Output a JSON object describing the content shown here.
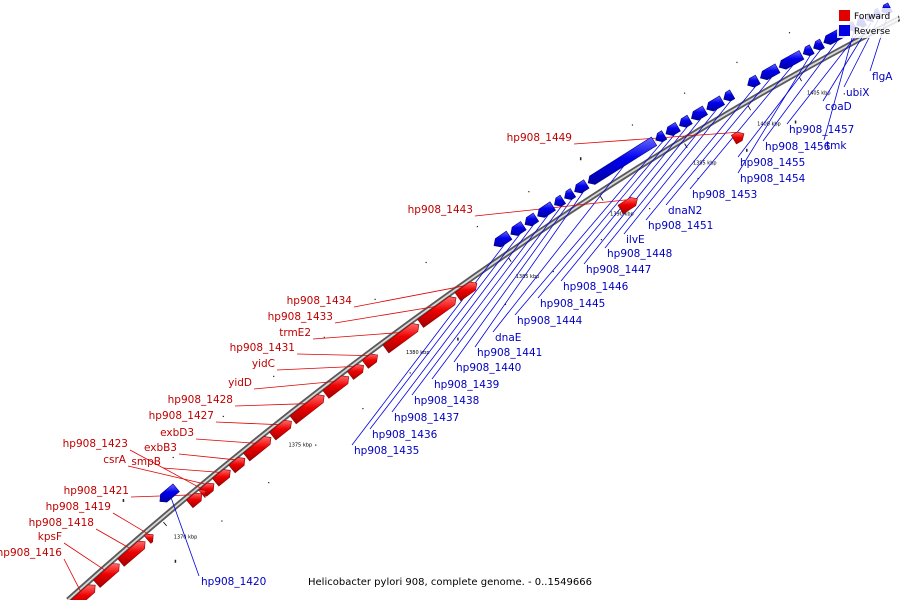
{
  "caption": "Helicobacter pylori 908, complete genome. - 0..1549666",
  "legend": [
    {
      "label": "Forward",
      "color": "#e00000"
    },
    {
      "label": "Reverse",
      "color": "#0000e0"
    }
  ],
  "colors": {
    "forward": "#e00000",
    "reverse": "#0000e0",
    "backbone": "#9a9a9a"
  },
  "ticks": [
    "1370 kbp",
    "1375 kbp",
    "1380 kbp",
    "1385 kbp",
    "1390 kbp",
    "1395 kbp",
    "1400 kbp",
    "1405 kbp"
  ],
  "genes": [
    {
      "name": "hp908_1416",
      "strand": "forward"
    },
    {
      "name": "kpsF",
      "strand": "forward"
    },
    {
      "name": "hp908_1418",
      "strand": "forward"
    },
    {
      "name": "hp908_1419",
      "strand": "forward"
    },
    {
      "name": "hp908_1420",
      "strand": "reverse"
    },
    {
      "name": "hp908_1421",
      "strand": "forward"
    },
    {
      "name": "csrA",
      "strand": "forward"
    },
    {
      "name": "smpB",
      "strand": "forward"
    },
    {
      "name": "hp908_1423",
      "strand": "forward"
    },
    {
      "name": "exbB3",
      "strand": "forward"
    },
    {
      "name": "exbD3",
      "strand": "forward"
    },
    {
      "name": "hp908_1427",
      "strand": "forward"
    },
    {
      "name": "hp908_1428",
      "strand": "forward"
    },
    {
      "name": "yidD",
      "strand": "forward"
    },
    {
      "name": "yidC",
      "strand": "forward"
    },
    {
      "name": "hp908_1431",
      "strand": "forward"
    },
    {
      "name": "trmE2",
      "strand": "forward"
    },
    {
      "name": "hp908_1433",
      "strand": "forward"
    },
    {
      "name": "hp908_1434",
      "strand": "forward"
    },
    {
      "name": "hp908_1435",
      "strand": "reverse"
    },
    {
      "name": "hp908_1436",
      "strand": "reverse"
    },
    {
      "name": "hp908_1437",
      "strand": "reverse"
    },
    {
      "name": "hp908_1438",
      "strand": "reverse"
    },
    {
      "name": "hp908_1439",
      "strand": "reverse"
    },
    {
      "name": "hp908_1440",
      "strand": "reverse"
    },
    {
      "name": "hp908_1441",
      "strand": "reverse"
    },
    {
      "name": "dnaE",
      "strand": "reverse"
    },
    {
      "name": "hp908_1443",
      "strand": "forward"
    },
    {
      "name": "hp908_1444",
      "strand": "reverse"
    },
    {
      "name": "hp908_1445",
      "strand": "reverse"
    },
    {
      "name": "hp908_1446",
      "strand": "reverse"
    },
    {
      "name": "hp908_1447",
      "strand": "reverse"
    },
    {
      "name": "hp908_1448",
      "strand": "reverse"
    },
    {
      "name": "ilvE",
      "strand": "reverse"
    },
    {
      "name": "hp908_1449",
      "strand": "forward"
    },
    {
      "name": "hp908_1451",
      "strand": "reverse"
    },
    {
      "name": "dnaN2",
      "strand": "reverse"
    },
    {
      "name": "hp908_1453",
      "strand": "reverse"
    },
    {
      "name": "hp908_1454",
      "strand": "reverse"
    },
    {
      "name": "hp908_1455",
      "strand": "reverse"
    },
    {
      "name": "hp908_1456",
      "strand": "reverse"
    },
    {
      "name": "tmk",
      "strand": "reverse"
    },
    {
      "name": "hp908_1457",
      "strand": "reverse"
    },
    {
      "name": "coaD",
      "strand": "reverse"
    },
    {
      "name": "ubiX",
      "strand": "reverse"
    },
    {
      "name": "flgA",
      "strand": "reverse"
    }
  ]
}
